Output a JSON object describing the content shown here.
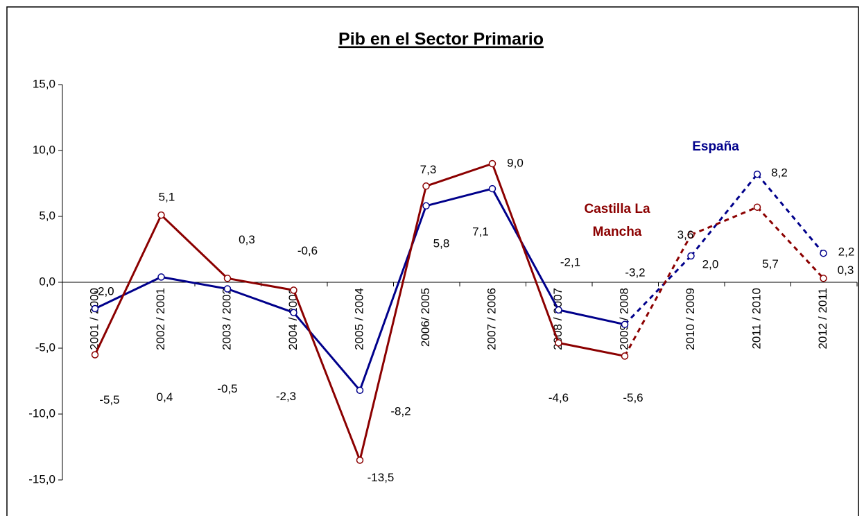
{
  "chart_data": {
    "type": "line",
    "title": "Pib en el Sector Primario",
    "categories": [
      "2001 / 2000",
      "2002 / 2001",
      "2003 / 2002",
      "2004 / 2003",
      "2005 / 2004",
      "2006/ 2005",
      "2007 / 2006",
      "2008 / 2007",
      "2009 / 2008",
      "2010 / 2009",
      "2011 / 2010",
      "2012 / 2011"
    ],
    "series": [
      {
        "name": "España",
        "color": "#00008b",
        "values": [
          -2.0,
          0.4,
          -0.5,
          -2.3,
          -8.2,
          5.8,
          7.1,
          -2.1,
          -3.2,
          2.0,
          8.2,
          2.2
        ],
        "value_labels": [
          "-2,0",
          "0,4",
          "-0,5",
          "-2,3",
          "-8,2",
          "5,8",
          "7,1",
          "-2,1",
          "-3,2",
          "2,0",
          "8,2",
          "2,2"
        ]
      },
      {
        "name": "Castilla La Mancha",
        "color": "#8b0000",
        "values": [
          -5.5,
          5.1,
          0.3,
          -0.6,
          -13.5,
          7.3,
          9.0,
          -4.6,
          -5.6,
          3.6,
          5.7,
          0.3
        ],
        "value_labels": [
          "-5,5",
          "5,1",
          "0,3",
          "-0,6",
          "-13,5",
          "7,3",
          "9,0",
          "-4,6",
          "-5,6",
          "3,6",
          "5,7",
          "0,3"
        ]
      }
    ],
    "dashed_from_index": 8,
    "ylim": [
      -15,
      15
    ],
    "yticks": [
      {
        "value": -15,
        "label": "-15,0"
      },
      {
        "value": -10,
        "label": "-10,0"
      },
      {
        "value": -5,
        "label": "-5,0"
      },
      {
        "value": 0,
        "label": "0,0"
      },
      {
        "value": 5,
        "label": "5,0"
      },
      {
        "value": 10,
        "label": "10,0"
      },
      {
        "value": 15,
        "label": "15,0"
      }
    ],
    "grid": false
  }
}
